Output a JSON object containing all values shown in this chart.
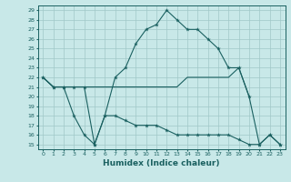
{
  "xlabel": "Humidex (Indice chaleur)",
  "bg_color": "#c8e8e8",
  "grid_color": "#a0c8c8",
  "line_color": "#1a6060",
  "xlim": [
    -0.5,
    23.5
  ],
  "ylim": [
    14.5,
    29.5
  ],
  "xticks": [
    0,
    1,
    2,
    3,
    4,
    5,
    6,
    7,
    8,
    9,
    10,
    11,
    12,
    13,
    14,
    15,
    16,
    17,
    18,
    19,
    20,
    21,
    22,
    23
  ],
  "yticks": [
    15,
    16,
    17,
    18,
    19,
    20,
    21,
    22,
    23,
    24,
    25,
    26,
    27,
    28,
    29
  ],
  "line1_x": [
    0,
    1,
    2,
    3,
    4,
    5,
    6,
    7,
    8,
    9,
    10,
    11,
    12,
    13,
    14,
    15,
    16,
    17,
    18,
    19,
    20,
    21,
    22,
    23
  ],
  "line1_y": [
    22,
    21,
    21,
    21,
    21,
    15,
    18,
    22,
    23,
    25.5,
    27,
    27.5,
    29,
    28,
    27,
    27,
    26,
    25,
    23,
    23,
    20,
    15,
    16,
    15
  ],
  "line2_x": [
    0,
    1,
    2,
    3,
    4,
    5,
    6,
    7,
    8,
    9,
    10,
    11,
    12,
    13,
    14,
    15,
    16,
    17,
    18,
    19,
    20
  ],
  "line2_y": [
    22,
    21,
    21,
    21,
    21,
    21,
    21,
    21,
    21,
    21,
    21,
    21,
    21,
    21,
    22,
    22,
    22,
    22,
    22,
    23,
    20
  ],
  "line3_x": [
    0,
    1,
    2,
    3,
    4,
    5,
    6,
    7,
    8,
    9,
    10,
    11,
    12,
    13,
    14,
    15,
    16,
    17,
    18,
    19,
    20,
    21,
    22,
    23
  ],
  "line3_y": [
    22,
    21,
    21,
    18,
    16,
    15,
    18,
    18,
    17.5,
    17,
    17,
    17,
    16.5,
    16,
    16,
    16,
    16,
    16,
    16,
    15.5,
    15,
    15,
    16,
    15
  ]
}
